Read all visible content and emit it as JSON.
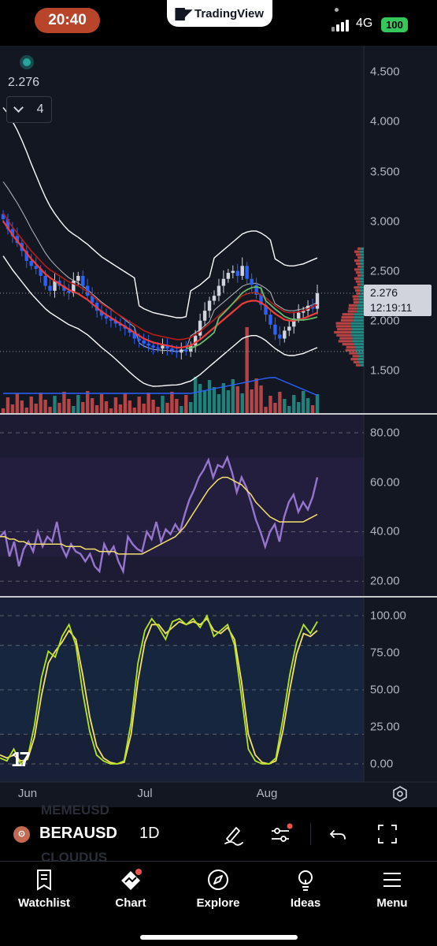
{
  "status_bar": {
    "time": "20:40",
    "app_name": "TradingView",
    "network": "4G",
    "battery": "100"
  },
  "chart": {
    "last_price": "2.276",
    "collapse_count": "4",
    "price_tag": {
      "price": "2.276",
      "countdown": "12:19:11"
    },
    "price_axis": [
      "4.500",
      "4.000",
      "3.500",
      "3.000",
      "2.500",
      "2.000",
      "1.500"
    ],
    "rsi_axis": [
      "80.00",
      "60.00",
      "40.00",
      "20.00"
    ],
    "stoch_axis": [
      "100.00",
      "75.00",
      "50.00",
      "25.00",
      "0.00"
    ],
    "months": [
      "Jun",
      "Jul",
      "Aug"
    ],
    "watermark": "17"
  },
  "colors": {
    "background": "#131722",
    "up": "#26a69a",
    "down": "#ef5350",
    "candle_down": "#2962ff",
    "rsi_line": "#9575cd",
    "rsi_ma": "#f5e06d",
    "stoch_k": "#b5e61d",
    "stoch_d": "#f5e06d",
    "bands": "#ffffff"
  },
  "symbol_bar": {
    "symbol": "BERAUSD",
    "interval": "1D",
    "ghost_above": "MEMEUSD",
    "ghost_below": "CLOUDUS"
  },
  "tabs": [
    {
      "label": "Watchlist",
      "icon": "watchlist-icon"
    },
    {
      "label": "Chart",
      "icon": "chart-icon"
    },
    {
      "label": "Explore",
      "icon": "compass-icon"
    },
    {
      "label": "Ideas",
      "icon": "lightbulb-icon"
    },
    {
      "label": "Menu",
      "icon": "hamburger-icon"
    }
  ],
  "chart_data": [
    {
      "type": "candlestick",
      "title": "BERAUSD",
      "interval": "1D",
      "ylim": [
        1.35,
        4.6
      ],
      "overlays": [
        "Bollinger Bands",
        "EMA (red)",
        "EMA (green)",
        "Volume",
        "Volume Profile"
      ],
      "close": [
        3.02,
        2.92,
        2.85,
        2.78,
        2.7,
        2.6,
        2.55,
        2.52,
        2.45,
        2.35,
        2.3,
        2.4,
        2.35,
        2.3,
        2.28,
        2.4,
        2.45,
        2.35,
        2.25,
        2.18,
        2.1,
        2.05,
        2.02,
        2.0,
        1.97,
        1.95,
        1.92,
        1.88,
        1.82,
        1.8,
        1.77,
        1.75,
        1.73,
        1.72,
        1.75,
        1.72,
        1.7,
        1.68,
        1.71,
        1.69,
        1.75,
        1.85,
        2.0,
        2.1,
        2.2,
        2.25,
        2.35,
        2.42,
        2.48,
        2.5,
        2.45,
        2.55,
        2.42,
        2.36,
        2.26,
        2.16,
        2.06,
        1.96,
        1.86,
        1.82,
        1.9,
        1.94,
        2.02,
        2.08,
        2.1,
        2.15,
        2.12,
        2.276
      ],
      "ma_red": [
        3.0,
        2.93,
        2.86,
        2.8,
        2.74,
        2.68,
        2.62,
        2.57,
        2.52,
        2.47,
        2.43,
        2.4,
        2.37,
        2.34,
        2.31,
        2.29,
        2.27,
        2.24,
        2.21,
        2.17,
        2.13,
        2.09,
        2.06,
        2.03,
        2.0,
        1.97,
        1.94,
        1.91,
        1.88,
        1.85,
        1.82,
        1.8,
        1.78,
        1.77,
        1.76,
        1.75,
        1.74,
        1.73,
        1.73,
        1.74,
        1.75,
        1.78,
        1.81,
        1.85,
        1.89,
        1.93,
        1.97,
        2.01,
        2.05,
        2.09,
        2.13,
        2.17,
        2.19,
        2.2,
        2.2,
        2.18,
        2.15,
        2.11,
        2.07,
        2.04,
        2.01,
        2.0,
        2.0,
        2.01,
        2.02,
        2.04,
        2.06,
        2.08
      ]
    },
    {
      "type": "line",
      "title": "RSI",
      "ylim": [
        15,
        85
      ],
      "series": [
        {
          "values": [
            38,
            40,
            30,
            36,
            26,
            33,
            36,
            32,
            40,
            34,
            38,
            36,
            44,
            34,
            30,
            35,
            32,
            31,
            28,
            31,
            26,
            24,
            35,
            31,
            34,
            28,
            24,
            38,
            35,
            33,
            32,
            40,
            37,
            44,
            36,
            41,
            39,
            43,
            40,
            47,
            53,
            57,
            62,
            65,
            69,
            62,
            67,
            66,
            70,
            64,
            56,
            62,
            58,
            52,
            45,
            40,
            34,
            40,
            43,
            36,
            46,
            52,
            55,
            48,
            52,
            49,
            54,
            62
          ]
        },
        {
          "values": [
            38,
            38,
            37,
            37,
            36,
            36,
            35,
            35,
            35,
            35,
            35,
            35,
            35,
            35,
            34,
            34,
            34,
            34,
            33,
            33,
            33,
            32,
            32,
            32,
            32,
            31,
            31,
            31,
            31,
            31,
            31,
            32,
            33,
            34,
            35,
            36,
            37,
            38,
            40,
            42,
            45,
            48,
            51,
            54,
            57,
            59,
            61,
            62,
            62,
            61,
            60,
            59,
            57,
            55,
            52,
            50,
            48,
            46,
            45,
            44,
            44,
            44,
            44,
            44,
            44,
            45,
            46,
            47
          ]
        }
      ]
    },
    {
      "type": "line",
      "title": "Stochastic RSI",
      "ylim": [
        0,
        100
      ],
      "series": [
        {
          "values": [
            4,
            2,
            10,
            0,
            4,
            26,
            58,
            76,
            72,
            86,
            94,
            80,
            48,
            22,
            6,
            2,
            0,
            0,
            2,
            28,
            68,
            90,
            98,
            92,
            84,
            96,
            98,
            94,
            98,
            92,
            100,
            86,
            90,
            94,
            80,
            46,
            10,
            2,
            0,
            0,
            4,
            30,
            60,
            82,
            94,
            88,
            96
          ]
        },
        {
          "values": [
            6,
            4,
            6,
            2,
            3,
            18,
            46,
            68,
            76,
            82,
            90,
            84,
            60,
            32,
            12,
            4,
            1,
            0,
            1,
            20,
            56,
            82,
            94,
            94,
            88,
            92,
            96,
            94,
            96,
            94,
            98,
            90,
            88,
            92,
            84,
            56,
            20,
            6,
            1,
            0,
            2,
            22,
            50,
            74,
            88,
            86,
            90
          ]
        }
      ]
    }
  ]
}
